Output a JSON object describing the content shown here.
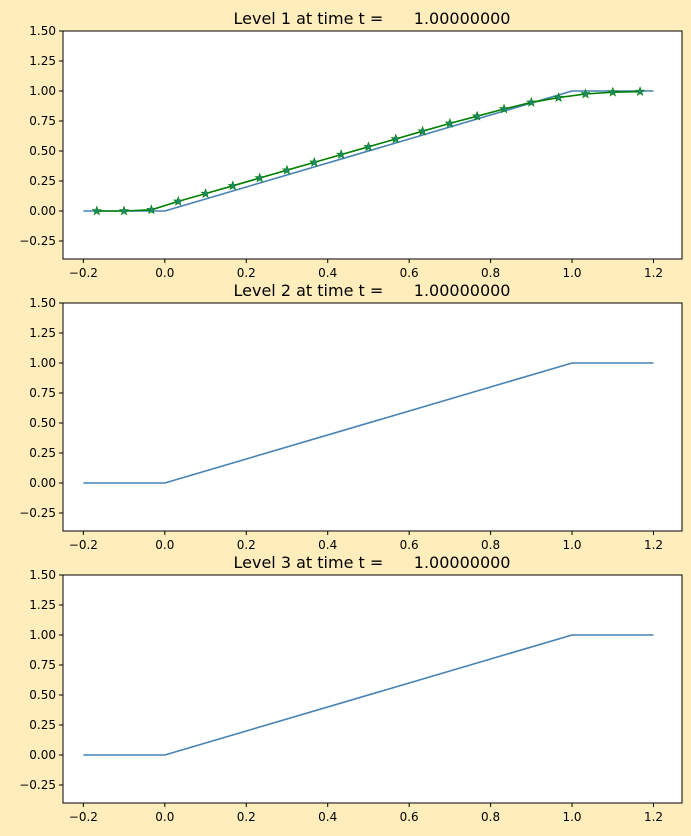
{
  "chart_data": [
    {
      "type": "line",
      "title": "Level 1 at time t =      1.00000000",
      "xlim": [
        -0.25,
        1.27
      ],
      "ylim": [
        -0.4,
        1.5
      ],
      "xticks": [
        -0.2,
        0.0,
        0.2,
        0.4,
        0.6,
        0.8,
        1.0,
        1.2
      ],
      "xtick_labels": [
        "−0.2",
        "0.0",
        "0.2",
        "0.4",
        "0.6",
        "0.8",
        "1.0",
        "1.2"
      ],
      "yticks": [
        -0.25,
        0.0,
        0.25,
        0.5,
        0.75,
        1.0,
        1.25,
        1.5
      ],
      "ytick_labels": [
        "−0.25",
        "0.00",
        "0.25",
        "0.50",
        "0.75",
        "1.00",
        "1.25",
        "1.50"
      ],
      "series": [
        {
          "color": "#4682b4",
          "marker": "none",
          "x": [
            -0.2,
            0.0,
            1.0,
            1.2
          ],
          "y": [
            0.0,
            0.0,
            1.0,
            1.0
          ]
        },
        {
          "color": "#008000",
          "marker": "star",
          "marker_color": "#1f8a70",
          "x": [
            -0.167,
            -0.1,
            -0.033,
            0.033,
            0.1,
            0.167,
            0.233,
            0.3,
            0.367,
            0.433,
            0.5,
            0.567,
            0.633,
            0.7,
            0.767,
            0.833,
            0.9,
            0.967,
            1.033,
            1.1,
            1.167
          ],
          "y": [
            0.0,
            0.0,
            0.01,
            0.08,
            0.145,
            0.21,
            0.275,
            0.34,
            0.405,
            0.47,
            0.535,
            0.6,
            0.665,
            0.73,
            0.79,
            0.85,
            0.905,
            0.945,
            0.975,
            0.99,
            0.995
          ]
        }
      ]
    },
    {
      "type": "line",
      "title": "Level 2 at time t =      1.00000000",
      "xlim": [
        -0.25,
        1.27
      ],
      "ylim": [
        -0.4,
        1.5
      ],
      "xticks": [
        -0.2,
        0.0,
        0.2,
        0.4,
        0.6,
        0.8,
        1.0,
        1.2
      ],
      "xtick_labels": [
        "−0.2",
        "0.0",
        "0.2",
        "0.4",
        "0.6",
        "0.8",
        "1.0",
        "1.2"
      ],
      "yticks": [
        -0.25,
        0.0,
        0.25,
        0.5,
        0.75,
        1.0,
        1.25,
        1.5
      ],
      "ytick_labels": [
        "−0.25",
        "0.00",
        "0.25",
        "0.50",
        "0.75",
        "1.00",
        "1.25",
        "1.50"
      ],
      "series": [
        {
          "color": "#4682b4",
          "marker": "none",
          "x": [
            -0.2,
            0.0,
            1.0,
            1.2
          ],
          "y": [
            0.0,
            0.0,
            1.0,
            1.0
          ]
        }
      ]
    },
    {
      "type": "line",
      "title": "Level 3 at time t =      1.00000000",
      "xlim": [
        -0.25,
        1.27
      ],
      "ylim": [
        -0.4,
        1.5
      ],
      "xticks": [
        -0.2,
        0.0,
        0.2,
        0.4,
        0.6,
        0.8,
        1.0,
        1.2
      ],
      "xtick_labels": [
        "−0.2",
        "0.0",
        "0.2",
        "0.4",
        "0.6",
        "0.8",
        "1.0",
        "1.2"
      ],
      "yticks": [
        -0.25,
        0.0,
        0.25,
        0.5,
        0.75,
        1.0,
        1.25,
        1.5
      ],
      "ytick_labels": [
        "−0.25",
        "0.00",
        "0.25",
        "0.50",
        "0.75",
        "1.00",
        "1.25",
        "1.50"
      ],
      "series": [
        {
          "color": "#4682b4",
          "marker": "none",
          "x": [
            -0.2,
            0.0,
            1.0,
            1.2
          ],
          "y": [
            0.0,
            0.0,
            1.0,
            1.0
          ]
        }
      ]
    }
  ]
}
